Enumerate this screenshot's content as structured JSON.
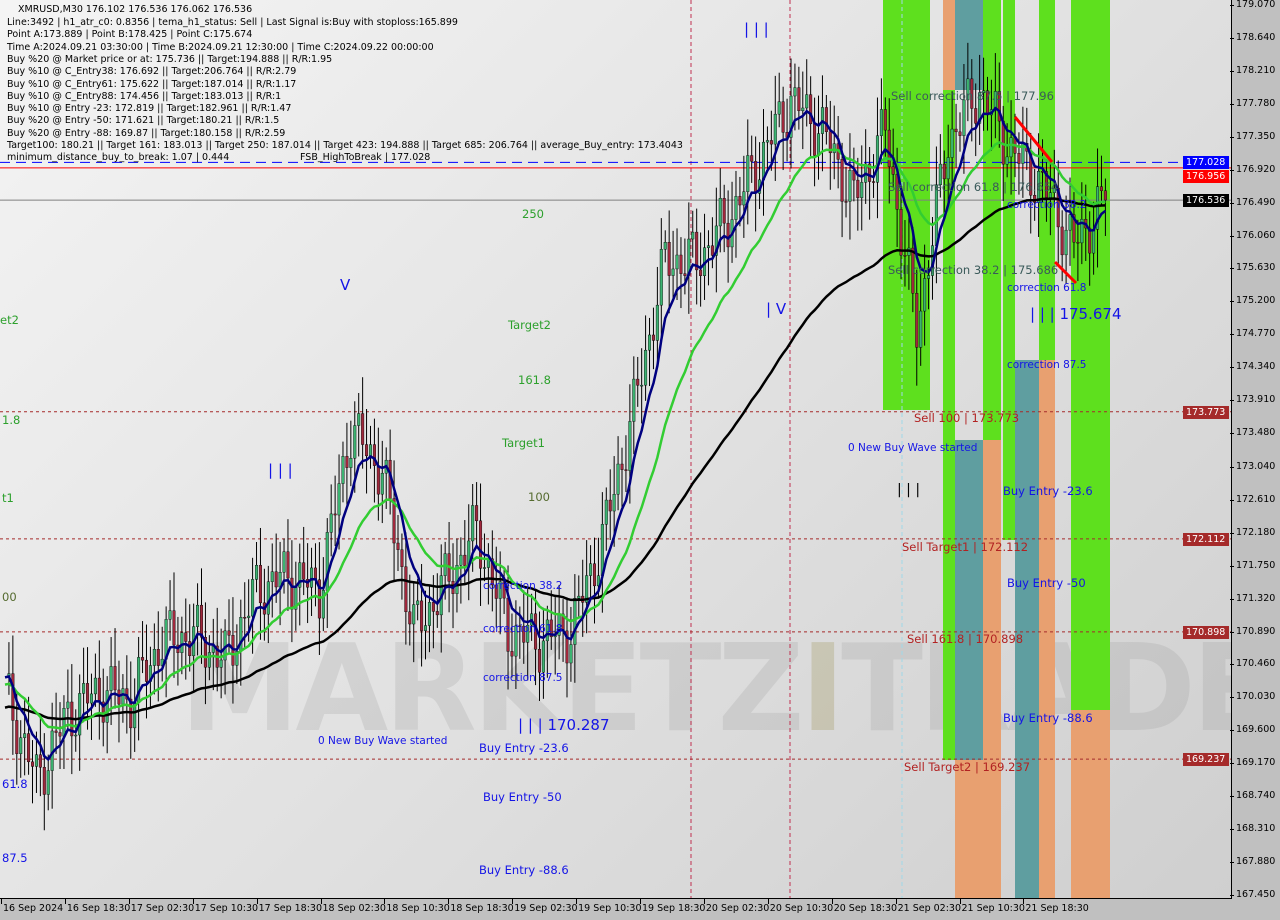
{
  "chart_data": {
    "type": "candlestick",
    "symbol_header": "XMRUSD,M30  176.102 176.536 176.062 176.536",
    "timeframe": "M30",
    "ylim": [
      167.45,
      179.07
    ],
    "y_ticks": [
      "179.070",
      "178.640",
      "178.210",
      "177.780",
      "177.350",
      "176.920",
      "176.490",
      "176.060",
      "175.630",
      "175.200",
      "174.770",
      "174.340",
      "173.910",
      "173.480",
      "173.040",
      "172.610",
      "172.180",
      "171.750",
      "171.320",
      "170.890",
      "170.460",
      "170.030",
      "169.600",
      "169.170",
      "168.740",
      "168.310",
      "167.880",
      "167.450"
    ],
    "x_ticks": [
      "16 Sep 2024",
      "16 Sep 18:30",
      "17 Sep 02:30",
      "17 Sep 10:30",
      "17 Sep 18:30",
      "18 Sep 02:30",
      "18 Sep 10:30",
      "18 Sep 18:30",
      "19 Sep 02:30",
      "19 Sep 10:30",
      "19 Sep 18:30",
      "20 Sep 02:30",
      "20 Sep 10:30",
      "20 Sep 18:30",
      "21 Sep 02:30",
      "21 Sep 10:30",
      "21 Sep 18:30"
    ],
    "close_every_4h_from_16_Sep_00_00": [
      170.14,
      168.97,
      169.81,
      170.14,
      170.01,
      170.79,
      170.86,
      170.53,
      171.45,
      171.64,
      171.45,
      173.54,
      173.01,
      170.92,
      171.51,
      172.23,
      170.92,
      170.79,
      170.92,
      172.1,
      173.8,
      175.75,
      175.75,
      176.28,
      177.06,
      177.84,
      177.45,
      176.54,
      177.45,
      174.84,
      177.32,
      177.97,
      177.19,
      176.73,
      175.95,
      176.536
    ],
    "last_price": 176.536,
    "levels": [
      {
        "price": 177.028,
        "color": "#0000ff",
        "style": "dashed",
        "tag": "177.028"
      },
      {
        "price": 176.956,
        "color": "#ff0000",
        "style": "solid",
        "tag": "176.956"
      },
      {
        "price": 176.536,
        "color": "#808080",
        "style": "solid",
        "tag": "176.536"
      },
      {
        "price": 173.773,
        "color": "#a52a2a",
        "style": "dotted",
        "tag": "173.773"
      },
      {
        "price": 172.112,
        "color": "#a52a2a",
        "style": "dotted",
        "tag": "172.112"
      },
      {
        "price": 170.898,
        "color": "#a52a2a",
        "style": "dotted",
        "tag": "170.898"
      },
      {
        "price": 169.237,
        "color": "#a52a2a",
        "style": "dotted",
        "tag": "169.237"
      }
    ],
    "colors": {
      "bull": "#3cb371",
      "bear": "#a0283c",
      "ma_fast": "#000080",
      "ma_mid": "#32cd32",
      "ma_slow": "#000000",
      "zone_green": "#5ee01e",
      "zone_orange": "#e8a070",
      "zone_teal": "#5f9ea0",
      "tag_red": "#a52a2a",
      "tag_blue": "#0000ff"
    }
  },
  "info_lines": [
    "Line:3492 | h1_atr_c0: 0.8356 | tema_h1_status: Sell | Last Signal is:Buy with stoploss:165.899",
    "Point A:173.889 | Point B:178.425 | Point C:175.674",
    "Time A:2024.09.21 03:30:00 | Time B:2024.09.21 12:30:00 | Time C:2024.09.22 00:00:00",
    "Buy %20 @ Market price or at: 175.736 || Target:194.888 || R/R:1.95",
    "Buy %10 @ C_Entry38: 176.692 || Target:206.764 || R/R:2.79",
    "Buy %10 @ C_Entry61: 175.622 || Target:187.014 || R/R:1.17",
    "Buy %10 @ C_Entry88: 174.456 || Target:183.013 || R/R:1",
    "Buy %10 @ Entry -23: 172.819 || Target:182.961 || R/R:1.47",
    "Buy %20 @ Entry -50: 171.621 || Target:180.21 || R/R:1.5",
    "Buy %20 @ Entry -88: 169.87 || Target:180.158 || R/R:2.59",
    "Target100: 180.21 || Target 161: 183.013 || Target 250: 187.014 || Target 423: 194.888 || Target 685: 206.764 || average_Buy_entry: 173.4043",
    "minimum_distance_buy_to_break: 1.07 | 0.444"
  ],
  "fsb_label": "FSB_HighToBreak | 177.028",
  "annotations": {
    "left": {
      "t250": "250",
      "target2": "Target2",
      "t161": "161.8",
      "target1": "Target1",
      "t100": "100",
      "corr38": "correction 38.2",
      "corr61": "correction 61.8",
      "corr87": "correction 87.5",
      "wave_label": "| | | 170.287",
      "new_wave": "0 New Buy Wave started",
      "entry23": "Buy Entry -23.6",
      "entry50": "Buy Entry -50",
      "entry88": "Buy Entry -88.6",
      "bars1": "| | |",
      "bars2": "| | |",
      "v1": "V",
      "v2": "| V",
      "edge_et2": "et2",
      "edge_18": "1.8",
      "edge_t1": "t1",
      "edge_00": "00",
      "edge_61": "61.8",
      "edge_875": "87.5"
    },
    "right": {
      "sell_corr87": "Sell correction 87.5 | 177.96",
      "sell_corr61": "Sell correction 61.8 | 176.654",
      "sell_corr38": "Sell correction 38.2 | 175.686",
      "corr38": "correction 38.2",
      "corr61": "correction 61.8",
      "corr87": "correction 87.5",
      "wave_label": "| | | 175.674",
      "sell100": "Sell 100 | 173.773",
      "new_wave": "0 New Buy Wave started",
      "bars": "| | |",
      "entry23": "Buy Entry -23.6",
      "sell_t1": "Sell Target1 | 172.112",
      "entry50": "Buy Entry -50",
      "sell161": "Sell 161.8 | 170.898",
      "entry88": "Buy Entry -88.6",
      "sell_t2": "Sell Target2 | 169.237"
    }
  },
  "watermark": "MARKETZ TRADE"
}
